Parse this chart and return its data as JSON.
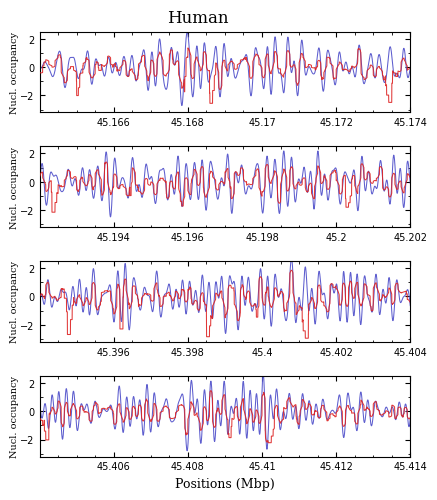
{
  "title": "Human",
  "xlabel": "Positions (Mbp)",
  "ylabel": "Nucl. occupancy",
  "blue_color": "#5555cc",
  "red_color": "#dd2222",
  "panels": [
    {
      "xmin": 45.164,
      "xmax": 45.174,
      "xticks": [
        45.166,
        45.168,
        45.17,
        45.172,
        45.174
      ],
      "seed": 1
    },
    {
      "xmin": 45.192,
      "xmax": 45.202,
      "xticks": [
        45.194,
        45.196,
        45.198,
        45.2,
        45.202
      ],
      "seed": 2
    },
    {
      "xmin": 45.394,
      "xmax": 45.404,
      "xticks": [
        45.396,
        45.398,
        45.4,
        45.402,
        45.404
      ],
      "seed": 3
    },
    {
      "xmin": 45.404,
      "xmax": 45.414,
      "xticks": [
        45.406,
        45.408,
        45.41,
        45.412,
        45.414
      ],
      "seed": 4
    }
  ],
  "ylim": [
    -3.2,
    2.5
  ],
  "yticks": [
    -2,
    0,
    2
  ]
}
